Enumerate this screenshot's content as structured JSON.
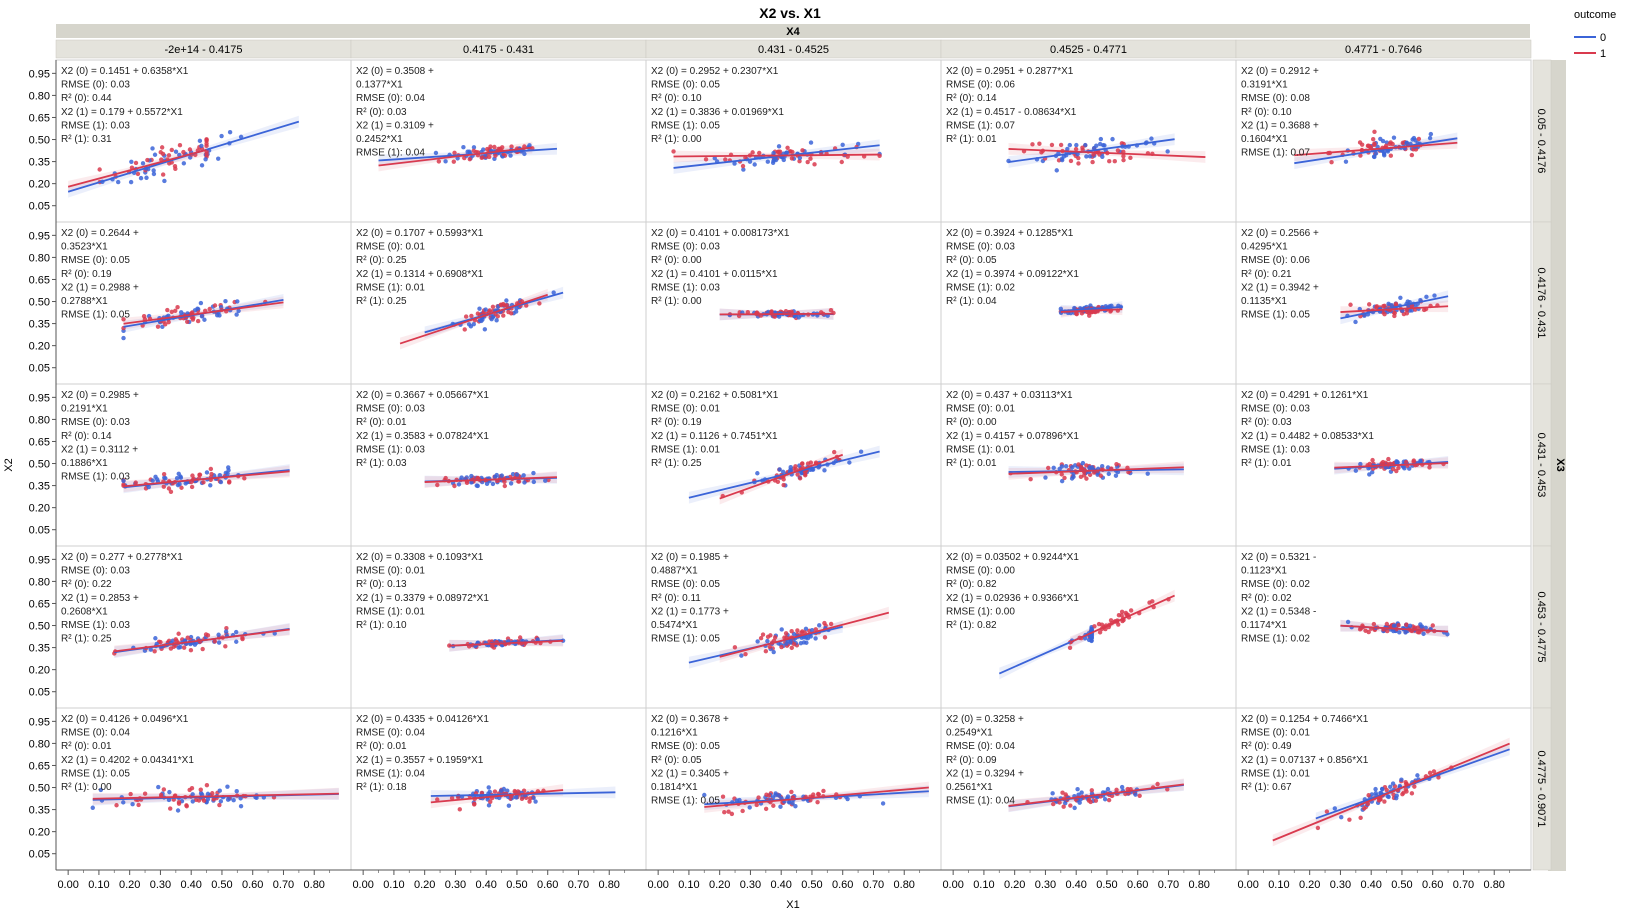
{
  "title": "X2 vs. X1",
  "col_group_label": "X4",
  "row_group_label": "X3",
  "xlabel": "X1",
  "ylabel": "X2",
  "legend": {
    "title": "outcome",
    "placement": "top-right",
    "entries": [
      {
        "label": "0",
        "color": "#3b64d8"
      },
      {
        "label": "1",
        "color": "#d93a4e"
      }
    ]
  },
  "x_ticks": [
    "0.00",
    "0.10",
    "0.20",
    "0.30",
    "0.40",
    "0.50",
    "0.60",
    "0.70",
    "0.80"
  ],
  "y_ticks": [
    "0.95",
    "0.80",
    "0.65",
    "0.50",
    "0.35",
    "0.20",
    "0.05"
  ],
  "colors": {
    "series0": "#3b64d8",
    "series1": "#d93a4e",
    "header_bg": "#e4e3dc",
    "group_bg": "#d6d5cc"
  },
  "chart_data": {
    "type": "scatter",
    "xlim": [
      -0.02,
      0.9
    ],
    "ylim": [
      -0.02,
      1.0
    ],
    "grid": false,
    "col_labels": [
      "-2e+14 - 0.4175",
      "0.4175 - 0.431",
      "0.431 - 0.4525",
      "0.4525 - 0.4771",
      "0.4771 - 0.7646"
    ],
    "row_labels": [
      "0.05 - 0.4176",
      "0.4176 - 0.431",
      "0.431 - 0.453",
      "0.453 - 0.4775",
      "0.4775 - 0.9071"
    ],
    "panels": [
      [
        {
          "annotation": [
            "X2 (0) = 0.1451 + 0.6358*X1",
            "RMSE (0): 0.03",
            "R² (0): 0.44",
            "X2 (1) = 0.179 + 0.5572*X1",
            "RMSE (1): 0.03",
            "R² (1): 0.31"
          ],
          "fit0": {
            "intercept": 0.1451,
            "slope": 0.6358,
            "x": [
              0.0,
              0.75
            ]
          },
          "fit1": {
            "intercept": 0.179,
            "slope": 0.5572,
            "x": [
              0.0,
              0.45
            ]
          },
          "cloud": {
            "cx": 0.35,
            "cy": 0.38,
            "sx": 0.12,
            "sy": 0.08
          }
        },
        {
          "annotation": [
            "X2 (0) = 0.3508 +",
            "0.1377*X1",
            "RMSE (0): 0.04",
            "R² (0): 0.03",
            "X2 (1) = 0.3109 +",
            "0.2452*X1",
            "RMSE (1): 0.04"
          ],
          "fit0": {
            "intercept": 0.3508,
            "slope": 0.1377,
            "x": [
              0.05,
              0.63
            ]
          },
          "fit1": {
            "intercept": 0.3109,
            "slope": 0.2452,
            "x": [
              0.05,
              0.55
            ]
          },
          "cloud": {
            "cx": 0.42,
            "cy": 0.4,
            "sx": 0.08,
            "sy": 0.04
          }
        },
        {
          "annotation": [
            "X2 (0) = 0.2952 + 0.2307*X1",
            "RMSE (0): 0.05",
            "R² (0): 0.10",
            "X2 (1) = 0.3836 + 0.01969*X1",
            "RMSE (1): 0.05",
            "R² (1): 0.00"
          ],
          "fit0": {
            "intercept": 0.2952,
            "slope": 0.2307,
            "x": [
              0.05,
              0.72
            ]
          },
          "fit1": {
            "intercept": 0.3836,
            "slope": 0.01969,
            "x": [
              0.05,
              0.72
            ]
          },
          "cloud": {
            "cx": 0.4,
            "cy": 0.39,
            "sx": 0.12,
            "sy": 0.05
          }
        },
        {
          "annotation": [
            "X2 (0) = 0.2951 + 0.2877*X1",
            "RMSE (0): 0.06",
            "R² (0): 0.14",
            "X2 (1) = 0.4517 - 0.08634*X1",
            "RMSE (1): 0.07",
            "R² (1): 0.01"
          ],
          "fit0": {
            "intercept": 0.2951,
            "slope": 0.2877,
            "x": [
              0.18,
              0.72
            ]
          },
          "fit1": {
            "intercept": 0.4517,
            "slope": -0.08634,
            "x": [
              0.18,
              0.82
            ]
          },
          "cloud": {
            "cx": 0.45,
            "cy": 0.4,
            "sx": 0.11,
            "sy": 0.05
          }
        },
        {
          "annotation": [
            "X2 (0) = 0.2912 +",
            "0.3191*X1",
            "RMSE (0): 0.08",
            "R² (0): 0.10",
            "X2 (1) = 0.3688 +",
            "0.1604*X1",
            "RMSE (1): 0.07"
          ],
          "fit0": {
            "intercept": 0.2912,
            "slope": 0.3191,
            "x": [
              0.15,
              0.68
            ]
          },
          "fit1": {
            "intercept": 0.3688,
            "slope": 0.1604,
            "x": [
              0.15,
              0.68
            ]
          },
          "cloud": {
            "cx": 0.45,
            "cy": 0.42,
            "sx": 0.09,
            "sy": 0.06
          }
        }
      ],
      [
        {
          "annotation": [
            "X2 (0) = 0.2644 +",
            "0.3523*X1",
            "RMSE (0): 0.05",
            "R² (0): 0.19",
            "X2 (1) = 0.2988 +",
            "0.2788*X1",
            "RMSE (1): 0.05"
          ],
          "fit0": {
            "intercept": 0.2644,
            "slope": 0.3523,
            "x": [
              0.18,
              0.7
            ]
          },
          "fit1": {
            "intercept": 0.2988,
            "slope": 0.2788,
            "x": [
              0.18,
              0.7
            ]
          },
          "cloud": {
            "cx": 0.4,
            "cy": 0.4,
            "sx": 0.1,
            "sy": 0.05
          }
        },
        {
          "annotation": [
            "X2 (0) = 0.1707 + 0.5993*X1",
            "RMSE (0): 0.01",
            "R² (0): 0.25",
            "X2 (1) = 0.1314 + 0.6908*X1",
            "RMSE (1): 0.01",
            "R² (1): 0.25"
          ],
          "fit0": {
            "intercept": 0.1707,
            "slope": 0.5993,
            "x": [
              0.2,
              0.65
            ]
          },
          "fit1": {
            "intercept": 0.1314,
            "slope": 0.6908,
            "x": [
              0.12,
              0.6
            ]
          },
          "cloud": {
            "cx": 0.43,
            "cy": 0.42,
            "sx": 0.06,
            "sy": 0.04
          }
        },
        {
          "annotation": [
            "X2 (0) = 0.4101 + 0.008173*X1",
            "RMSE (0): 0.03",
            "R² (0): 0.00",
            "X2 (1) = 0.4101 + 0.0115*X1",
            "RMSE (1): 0.03",
            "R² (1): 0.00"
          ],
          "fit0": {
            "intercept": 0.4101,
            "slope": 0.008173,
            "x": [
              0.2,
              0.57
            ]
          },
          "fit1": {
            "intercept": 0.4101,
            "slope": 0.0115,
            "x": [
              0.2,
              0.57
            ]
          },
          "cloud": {
            "cx": 0.4,
            "cy": 0.41,
            "sx": 0.08,
            "sy": 0.02
          }
        },
        {
          "annotation": [
            "X2 (0) = 0.3924 + 0.1285*X1",
            "RMSE (0): 0.03",
            "R² (0): 0.05",
            "X2 (1) = 0.3974 + 0.09122*X1",
            "RMSE (1): 0.02",
            "R² (1): 0.04"
          ],
          "fit0": {
            "intercept": 0.3924,
            "slope": 0.1285,
            "x": [
              0.35,
              0.55
            ]
          },
          "fit1": {
            "intercept": 0.3974,
            "slope": 0.09122,
            "x": [
              0.35,
              0.55
            ]
          },
          "cloud": {
            "cx": 0.45,
            "cy": 0.45,
            "sx": 0.04,
            "sy": 0.02
          }
        },
        {
          "annotation": [
            "X2 (0) = 0.2566 +",
            "0.4295*X1",
            "RMSE (0): 0.06",
            "R² (0): 0.21",
            "X2 (1) = 0.3942 +",
            "0.1135*X1",
            "RMSE (1): 0.05"
          ],
          "fit0": {
            "intercept": 0.2566,
            "slope": 0.4295,
            "x": [
              0.3,
              0.65
            ]
          },
          "fit1": {
            "intercept": 0.3942,
            "slope": 0.1135,
            "x": [
              0.3,
              0.65
            ]
          },
          "cloud": {
            "cx": 0.45,
            "cy": 0.44,
            "sx": 0.07,
            "sy": 0.04
          }
        }
      ],
      [
        {
          "annotation": [
            "X2 (0) = 0.2985 +",
            "0.2191*X1",
            "RMSE (0): 0.03",
            "R² (0): 0.14",
            "X2 (1) = 0.3112 +",
            "0.1886*X1",
            "RMSE (1): 0.03"
          ],
          "fit0": {
            "intercept": 0.2985,
            "slope": 0.2191,
            "x": [
              0.18,
              0.72
            ]
          },
          "fit1": {
            "intercept": 0.3112,
            "slope": 0.1886,
            "x": [
              0.18,
              0.72
            ]
          },
          "cloud": {
            "cx": 0.38,
            "cy": 0.39,
            "sx": 0.1,
            "sy": 0.05
          }
        },
        {
          "annotation": [
            "X2 (0) = 0.3667 + 0.05667*X1",
            "RMSE (0): 0.03",
            "R² (0): 0.01",
            "X2 (1) = 0.3583 + 0.07824*X1",
            "RMSE (1): 0.03",
            "R² (1): 0.03"
          ],
          "fit0": {
            "intercept": 0.3667,
            "slope": 0.05667,
            "x": [
              0.2,
              0.63
            ]
          },
          "fit1": {
            "intercept": 0.3583,
            "slope": 0.07824,
            "x": [
              0.2,
              0.63
            ]
          },
          "cloud": {
            "cx": 0.42,
            "cy": 0.39,
            "sx": 0.08,
            "sy": 0.03
          }
        },
        {
          "annotation": [
            "X2 (0) = 0.2162 + 0.5081*X1",
            "RMSE (0): 0.01",
            "R² (0): 0.19",
            "X2 (1) = 0.1126 + 0.7451*X1",
            "RMSE (1): 0.01",
            "R² (1): 0.25"
          ],
          "fit0": {
            "intercept": 0.2162,
            "slope": 0.5081,
            "x": [
              0.1,
              0.72
            ]
          },
          "fit1": {
            "intercept": 0.1126,
            "slope": 0.7451,
            "x": [
              0.2,
              0.6
            ]
          },
          "cloud": {
            "cx": 0.45,
            "cy": 0.42,
            "sx": 0.08,
            "sy": 0.04
          }
        },
        {
          "annotation": [
            "X2 (0) = 0.437 + 0.03113*X1",
            "RMSE (0): 0.01",
            "R² (0): 0.00",
            "X2 (1) = 0.4157 + 0.07896*X1",
            "RMSE (1): 0.01",
            "R² (1): 0.01"
          ],
          "fit0": {
            "intercept": 0.437,
            "slope": 0.03113,
            "x": [
              0.18,
              0.75
            ]
          },
          "fit1": {
            "intercept": 0.4157,
            "slope": 0.07896,
            "x": [
              0.18,
              0.75
            ]
          },
          "cloud": {
            "cx": 0.45,
            "cy": 0.45,
            "sx": 0.07,
            "sy": 0.04
          }
        },
        {
          "annotation": [
            "X2 (0) = 0.4291 + 0.1261*X1",
            "RMSE (0): 0.03",
            "R² (0): 0.03",
            "X2 (1) = 0.4482 + 0.08533*X1",
            "RMSE (1): 0.03",
            "R² (1): 0.01"
          ],
          "fit0": {
            "intercept": 0.4291,
            "slope": 0.1261,
            "x": [
              0.28,
              0.65
            ]
          },
          "fit1": {
            "intercept": 0.4482,
            "slope": 0.08533,
            "x": [
              0.28,
              0.65
            ]
          },
          "cloud": {
            "cx": 0.47,
            "cy": 0.48,
            "sx": 0.06,
            "sy": 0.03
          }
        }
      ],
      [
        {
          "annotation": [
            "X2 (0) = 0.277 + 0.2778*X1",
            "RMSE (0): 0.03",
            "R² (0): 0.22",
            "X2 (1) = 0.2853 +",
            "0.2608*X1",
            "RMSE (1): 0.03",
            "R² (1): 0.25"
          ],
          "fit0": {
            "intercept": 0.277,
            "slope": 0.2778,
            "x": [
              0.15,
              0.72
            ]
          },
          "fit1": {
            "intercept": 0.2853,
            "slope": 0.2608,
            "x": [
              0.15,
              0.72
            ]
          },
          "cloud": {
            "cx": 0.4,
            "cy": 0.39,
            "sx": 0.1,
            "sy": 0.04
          }
        },
        {
          "annotation": [
            "X2 (0) = 0.3308 + 0.1093*X1",
            "RMSE (0): 0.01",
            "R² (0): 0.13",
            "X2 (1) = 0.3379 + 0.08972*X1",
            "RMSE (1): 0.01",
            "R² (1): 0.10"
          ],
          "fit0": {
            "intercept": 0.3308,
            "slope": 0.1093,
            "x": [
              0.28,
              0.65
            ]
          },
          "fit1": {
            "intercept": 0.3379,
            "slope": 0.08972,
            "x": [
              0.28,
              0.65
            ]
          },
          "cloud": {
            "cx": 0.45,
            "cy": 0.38,
            "sx": 0.07,
            "sy": 0.02
          }
        },
        {
          "annotation": [
            "X2 (0) = 0.1985 +",
            "0.4887*X1",
            "RMSE (0): 0.05",
            "R² (0): 0.11",
            "X2 (1) = 0.1773 +",
            "0.5474*X1",
            "RMSE (1): 0.05"
          ],
          "fit0": {
            "intercept": 0.1985,
            "slope": 0.4887,
            "x": [
              0.1,
              0.6
            ]
          },
          "fit1": {
            "intercept": 0.1773,
            "slope": 0.5474,
            "x": [
              0.2,
              0.75
            ]
          },
          "cloud": {
            "cx": 0.43,
            "cy": 0.42,
            "sx": 0.06,
            "sy": 0.05
          }
        },
        {
          "annotation": [
            "X2 (0) = 0.03502 + 0.9244*X1",
            "RMSE (0): 0.00",
            "R² (0): 0.82",
            "X2 (1) = 0.02936 + 0.9366*X1",
            "RMSE (1): 0.00",
            "R² (1): 0.82"
          ],
          "fit0": {
            "intercept": 0.03502,
            "slope": 0.9244,
            "x": [
              0.15,
              0.45
            ]
          },
          "fit1": {
            "intercept": 0.02936,
            "slope": 0.9366,
            "x": [
              0.38,
              0.72
            ]
          },
          "cloud": {
            "cx": 0.5,
            "cy": 0.42,
            "sx": 0.07,
            "sy": 0.04
          }
        },
        {
          "annotation": [
            "X2 (0) = 0.5321 -",
            "0.1123*X1",
            "RMSE (0): 0.02",
            "R² (0): 0.02",
            "X2 (1) = 0.5348 -",
            "0.1174*X1",
            "RMSE (1): 0.02"
          ],
          "fit0": {
            "intercept": 0.5321,
            "slope": -0.1123,
            "x": [
              0.3,
              0.65
            ]
          },
          "fit1": {
            "intercept": 0.5348,
            "slope": -0.1174,
            "x": [
              0.3,
              0.65
            ]
          },
          "cloud": {
            "cx": 0.48,
            "cy": 0.47,
            "sx": 0.06,
            "sy": 0.03
          }
        }
      ],
      [
        {
          "annotation": [
            "X2 (0) = 0.4126 + 0.0496*X1",
            "RMSE (0): 0.04",
            "R² (0): 0.01",
            "X2 (1) = 0.4202 + 0.04341*X1",
            "RMSE (1): 0.05",
            "R² (1): 0.00"
          ],
          "fit0": {
            "intercept": 0.4126,
            "slope": 0.0496,
            "x": [
              0.08,
              0.88
            ]
          },
          "fit1": {
            "intercept": 0.4202,
            "slope": 0.04341,
            "x": [
              0.08,
              0.88
            ]
          },
          "cloud": {
            "cx": 0.4,
            "cy": 0.42,
            "sx": 0.12,
            "sy": 0.06
          }
        },
        {
          "annotation": [
            "X2 (0) = 0.4335 + 0.04126*X1",
            "RMSE (0): 0.04",
            "R² (0): 0.01",
            "X2 (1) = 0.3557 + 0.1959*X1",
            "RMSE (1): 0.04",
            "R² (1): 0.18"
          ],
          "fit0": {
            "intercept": 0.4335,
            "slope": 0.04126,
            "x": [
              0.22,
              0.82
            ]
          },
          "fit1": {
            "intercept": 0.3557,
            "slope": 0.1959,
            "x": [
              0.22,
              0.65
            ]
          },
          "cloud": {
            "cx": 0.45,
            "cy": 0.42,
            "sx": 0.08,
            "sy": 0.05
          }
        },
        {
          "annotation": [
            "X2 (0) = 0.3678 +",
            "0.1216*X1",
            "RMSE (0): 0.05",
            "R² (0): 0.05",
            "X2 (1) = 0.3405 +",
            "0.1814*X1",
            "RMSE (1): 0.05"
          ],
          "fit0": {
            "intercept": 0.3678,
            "slope": 0.1216,
            "x": [
              0.15,
              0.88
            ]
          },
          "fit1": {
            "intercept": 0.3405,
            "slope": 0.1814,
            "x": [
              0.15,
              0.88
            ]
          },
          "cloud": {
            "cx": 0.42,
            "cy": 0.41,
            "sx": 0.11,
            "sy": 0.05
          }
        },
        {
          "annotation": [
            "X2 (0) = 0.3258 +",
            "0.2549*X1",
            "RMSE (0): 0.04",
            "R² (0): 0.09",
            "X2 (1) = 0.3294 +",
            "0.2561*X1",
            "RMSE (1): 0.04"
          ],
          "fit0": {
            "intercept": 0.3258,
            "slope": 0.2549,
            "x": [
              0.18,
              0.75
            ]
          },
          "fit1": {
            "intercept": 0.3294,
            "slope": 0.2561,
            "x": [
              0.18,
              0.75
            ]
          },
          "cloud": {
            "cx": 0.45,
            "cy": 0.42,
            "sx": 0.09,
            "sy": 0.04
          }
        },
        {
          "annotation": [
            "X2 (0) = 0.1254 + 0.7466*X1",
            "RMSE (0): 0.01",
            "R² (0): 0.49",
            "X2 (1) = 0.07137 + 0.856*X1",
            "RMSE (1): 0.01",
            "R² (1): 0.67"
          ],
          "fit0": {
            "intercept": 0.1254,
            "slope": 0.7466,
            "x": [
              0.22,
              0.85
            ]
          },
          "fit1": {
            "intercept": 0.07137,
            "slope": 0.856,
            "x": [
              0.08,
              0.85
            ]
          },
          "cloud": {
            "cx": 0.45,
            "cy": 0.46,
            "sx": 0.08,
            "sy": 0.05
          }
        }
      ]
    ]
  }
}
